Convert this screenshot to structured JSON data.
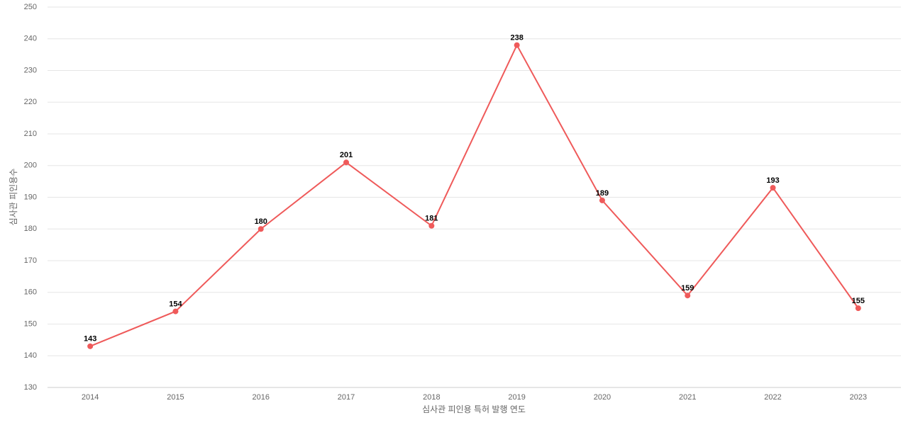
{
  "chart_data": {
    "type": "line",
    "x_label": "심사관 피인용 특허 발행 연도",
    "y_label": "심사관 피인용수",
    "categories": [
      "2014",
      "2015",
      "2016",
      "2017",
      "2018",
      "2019",
      "2020",
      "2021",
      "2022",
      "2023"
    ],
    "series": [
      {
        "name": "심사관 피인용수",
        "color": "#ef5a5a",
        "values": [
          143,
          154,
          180,
          201,
          181,
          238,
          189,
          159,
          193,
          155
        ]
      }
    ],
    "ylim": [
      130,
      250
    ],
    "yticks": [
      130,
      140,
      150,
      160,
      170,
      180,
      190,
      200,
      210,
      220,
      230,
      240,
      250
    ],
    "grid": true
  }
}
